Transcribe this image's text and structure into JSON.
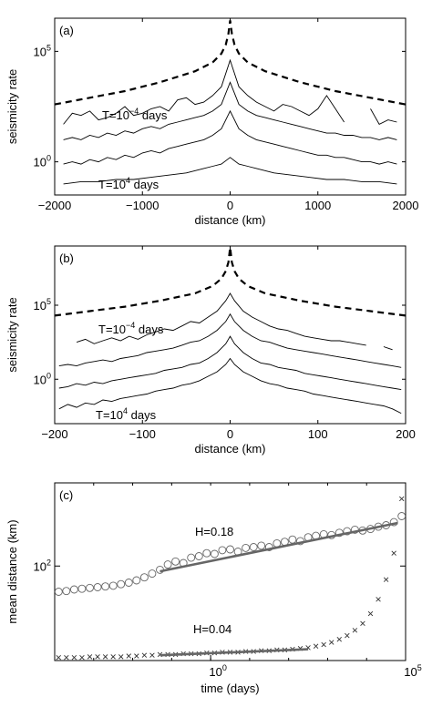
{
  "chart_data": [
    {
      "type": "line",
      "panel_label": "(a)",
      "xlabel": "distance (km)",
      "ylabel": "seismicity rate",
      "xlim": [
        -2000,
        2000
      ],
      "ylim_log10": [
        -1.5,
        6.5
      ],
      "yscale": "log",
      "x_ticks": [
        -2000,
        -1000,
        0,
        1000,
        2000
      ],
      "x_tick_labels": [
        "−2000",
        "−1000",
        "0",
        "1000",
        "2000"
      ],
      "y_ticks_log10": [
        0,
        5
      ],
      "y_tick_labels": [
        {
          "base": "10",
          "exp": "0"
        },
        {
          "base": "10",
          "exp": "5"
        }
      ],
      "annotations": [
        {
          "pre": "T=10",
          "exp": "−4",
          "post": " days"
        },
        {
          "pre": "T=10",
          "exp": "4",
          "post": " days"
        }
      ],
      "series": [
        {
          "style": "dashed",
          "x": [
            -2000,
            -1600,
            -1200,
            -800,
            -400,
            -200,
            -100,
            -50,
            -20,
            0,
            20,
            50,
            100,
            200,
            400,
            800,
            1200,
            1600,
            2000
          ],
          "y_log10": [
            2.6,
            2.9,
            3.2,
            3.6,
            4.1,
            4.5,
            4.9,
            5.3,
            5.8,
            6.4,
            5.8,
            5.3,
            4.9,
            4.5,
            4.1,
            3.6,
            3.2,
            2.9,
            2.6
          ]
        },
        {
          "style": "solid",
          "x": [
            -1900,
            -1800,
            -1700,
            -1600,
            -1500,
            -1400,
            -1300,
            -1200,
            -1100,
            -1000,
            -900,
            -800,
            -700,
            -600,
            -500,
            -400,
            -300,
            -200,
            -100,
            0,
            100,
            200,
            300,
            400,
            500,
            600,
            700,
            800,
            900,
            1000,
            1100,
            1200,
            1300,
            1400,
            1500,
            1600,
            1700,
            1800,
            1900
          ],
          "y_log10": [
            1.7,
            2.2,
            2.1,
            2.3,
            1.9,
            2.0,
            2.2,
            2.5,
            2.1,
            2.2,
            2.4,
            2.5,
            2.3,
            2.8,
            2.9,
            2.6,
            2.7,
            3.0,
            3.4,
            4.6,
            3.4,
            3.0,
            2.7,
            2.5,
            2.3,
            2.6,
            2.5,
            2.3,
            2.1,
            2.4,
            3.0,
            2.4,
            1.8,
            null,
            null,
            2.4,
            1.7,
            1.9,
            1.8
          ]
        },
        {
          "style": "solid",
          "x": [
            -1900,
            -1800,
            -1700,
            -1600,
            -1500,
            -1400,
            -1300,
            -1200,
            -1100,
            -1000,
            -900,
            -800,
            -700,
            -600,
            -500,
            -400,
            -300,
            -200,
            -100,
            0,
            100,
            200,
            300,
            400,
            500,
            600,
            700,
            800,
            900,
            1000,
            1100,
            1200,
            1300,
            1400,
            1500,
            1600,
            1700,
            1800,
            1900
          ],
          "y_log10": [
            1.0,
            1.1,
            1.0,
            1.2,
            1.1,
            1.3,
            1.2,
            1.4,
            1.3,
            1.5,
            1.6,
            1.5,
            1.7,
            1.8,
            1.9,
            2.0,
            2.1,
            2.3,
            2.6,
            3.6,
            2.6,
            2.3,
            2.1,
            2.0,
            1.9,
            1.8,
            1.7,
            1.6,
            1.5,
            1.4,
            1.3,
            1.3,
            1.2,
            1.2,
            1.1,
            1.1,
            1.0,
            1.1,
            1.0
          ]
        },
        {
          "style": "solid",
          "x": [
            -1900,
            -1800,
            -1700,
            -1600,
            -1500,
            -1400,
            -1300,
            -1200,
            -1100,
            -1000,
            -900,
            -800,
            -700,
            -600,
            -500,
            -400,
            -300,
            -200,
            -100,
            0,
            100,
            200,
            300,
            400,
            500,
            600,
            700,
            800,
            900,
            1000,
            1100,
            1200,
            1300,
            1400,
            1500,
            1600,
            1700,
            1800,
            1900
          ],
          "y_log10": [
            -0.1,
            0.0,
            -0.1,
            0.1,
            0.0,
            0.2,
            0.1,
            0.3,
            0.2,
            0.4,
            0.5,
            0.4,
            0.6,
            0.7,
            0.8,
            0.9,
            1.0,
            1.2,
            1.5,
            2.3,
            1.5,
            1.2,
            1.0,
            0.9,
            0.8,
            0.7,
            0.6,
            0.5,
            0.4,
            0.3,
            0.3,
            0.2,
            0.2,
            0.1,
            0.0,
            0.0,
            -0.1,
            0.0,
            -0.1
          ]
        },
        {
          "style": "solid",
          "x": [
            -1900,
            -1700,
            -1500,
            -1300,
            -1100,
            -900,
            -700,
            -500,
            -300,
            -200,
            -100,
            0,
            100,
            200,
            300,
            500,
            700,
            900,
            1100,
            1300,
            1500,
            1700,
            1900
          ],
          "y_log10": [
            -1.0,
            -0.9,
            -0.9,
            -0.8,
            -0.8,
            -0.7,
            -0.6,
            -0.5,
            -0.3,
            -0.2,
            -0.1,
            0.2,
            -0.1,
            -0.2,
            -0.3,
            -0.5,
            -0.6,
            -0.7,
            -0.8,
            -0.8,
            -0.9,
            -0.9,
            -1.0
          ]
        }
      ]
    },
    {
      "type": "line",
      "panel_label": "(b)",
      "xlabel": "distance (km)",
      "ylabel": "seismicity rate",
      "xlim": [
        -200,
        200
      ],
      "ylim_log10": [
        -3.0,
        9.0
      ],
      "yscale": "log",
      "x_ticks": [
        -200,
        -100,
        0,
        100,
        200
      ],
      "x_tick_labels": [
        "−200",
        "−100",
        "0",
        "100",
        "200"
      ],
      "y_ticks_log10": [
        0,
        5
      ],
      "y_tick_labels": [
        {
          "base": "10",
          "exp": "0"
        },
        {
          "base": "10",
          "exp": "5"
        }
      ],
      "annotations": [
        {
          "pre": "T=10",
          "exp": "−4",
          "post": " days"
        },
        {
          "pre": "T=10",
          "exp": "4",
          "post": " days"
        }
      ],
      "series": [
        {
          "style": "dashed",
          "x": [
            -200,
            -160,
            -120,
            -80,
            -40,
            -20,
            -10,
            -5,
            -2,
            0,
            2,
            5,
            10,
            20,
            40,
            80,
            120,
            160,
            200
          ],
          "y_log10": [
            4.3,
            4.6,
            4.9,
            5.3,
            5.8,
            6.3,
            6.8,
            7.3,
            7.9,
            8.9,
            7.9,
            7.3,
            6.8,
            6.3,
            5.8,
            5.3,
            4.9,
            4.6,
            4.3
          ]
        },
        {
          "style": "solid",
          "x": [
            -175,
            -165,
            -155,
            -145,
            -135,
            -125,
            -115,
            -105,
            -95,
            -85,
            -75,
            -65,
            -55,
            -45,
            -35,
            -25,
            -15,
            -5,
            0,
            5,
            15,
            25,
            35,
            45,
            55,
            65,
            75,
            85,
            95,
            105,
            115,
            125,
            135,
            145,
            155,
            165,
            175,
            185,
            195
          ],
          "y_log10": [
            2.5,
            2.7,
            2.4,
            2.6,
            2.8,
            2.6,
            2.9,
            2.7,
            3.0,
            3.2,
            3.4,
            3.3,
            3.6,
            3.9,
            3.8,
            4.2,
            4.6,
            5.3,
            5.8,
            5.3,
            4.6,
            4.2,
            3.9,
            3.6,
            3.4,
            3.3,
            3.1,
            2.9,
            2.8,
            2.7,
            2.6,
            2.6,
            2.5,
            2.4,
            2.3,
            null,
            2.2,
            2.0,
            null
          ]
        },
        {
          "style": "solid",
          "x": [
            -195,
            -185,
            -175,
            -165,
            -155,
            -145,
            -135,
            -125,
            -115,
            -105,
            -95,
            -85,
            -75,
            -65,
            -55,
            -45,
            -35,
            -25,
            -15,
            -5,
            0,
            5,
            15,
            25,
            35,
            45,
            55,
            65,
            75,
            85,
            95,
            105,
            115,
            125,
            135,
            145,
            155,
            165,
            175,
            185,
            195
          ],
          "y_log10": [
            0.9,
            1.0,
            0.9,
            1.1,
            1.2,
            1.3,
            1.2,
            1.4,
            1.5,
            1.6,
            1.8,
            1.9,
            2.0,
            2.1,
            2.3,
            2.5,
            2.6,
            2.9,
            3.3,
            3.9,
            4.4,
            3.9,
            3.3,
            2.9,
            2.6,
            2.5,
            2.3,
            2.1,
            2.0,
            1.9,
            1.8,
            1.7,
            1.6,
            1.5,
            1.4,
            1.3,
            1.2,
            1.1,
            1.0,
            0.9,
            0.8
          ]
        },
        {
          "style": "solid",
          "x": [
            -195,
            -185,
            -175,
            -165,
            -155,
            -145,
            -135,
            -125,
            -115,
            -105,
            -95,
            -85,
            -75,
            -65,
            -55,
            -45,
            -35,
            -25,
            -15,
            -5,
            0,
            5,
            15,
            25,
            35,
            45,
            55,
            65,
            75,
            85,
            95,
            105,
            115,
            125,
            135,
            145,
            155,
            165,
            175,
            185,
            195
          ],
          "y_log10": [
            -0.6,
            -0.5,
            -0.3,
            -0.4,
            -0.2,
            -0.3,
            -0.1,
            0.0,
            0.1,
            0.2,
            0.3,
            0.4,
            0.6,
            0.7,
            0.8,
            1.0,
            1.1,
            1.4,
            1.8,
            2.4,
            2.9,
            2.4,
            1.8,
            1.4,
            1.1,
            1.0,
            0.8,
            0.7,
            0.6,
            0.4,
            0.3,
            0.2,
            0.1,
            0.0,
            -0.1,
            -0.2,
            -0.3,
            -0.4,
            -0.5,
            -0.6,
            -0.7
          ]
        },
        {
          "style": "solid",
          "x": [
            -195,
            -185,
            -175,
            -165,
            -155,
            -145,
            -135,
            -125,
            -115,
            -105,
            -95,
            -85,
            -75,
            -65,
            -55,
            -45,
            -35,
            -25,
            -15,
            -5,
            0,
            5,
            15,
            25,
            35,
            45,
            55,
            65,
            75,
            85,
            95,
            105,
            115,
            125,
            135,
            145,
            155,
            165,
            175,
            185,
            195
          ],
          "y_log10": [
            -2.0,
            -1.7,
            -1.9,
            -1.6,
            -1.7,
            -1.4,
            -1.5,
            -1.3,
            -1.2,
            -1.1,
            -1.0,
            -0.8,
            -0.7,
            -0.6,
            -0.4,
            -0.3,
            -0.1,
            0.2,
            0.5,
            1.0,
            1.4,
            1.0,
            0.5,
            0.2,
            -0.1,
            -0.3,
            -0.4,
            -0.6,
            -0.7,
            -0.8,
            -1.0,
            -1.1,
            -1.2,
            -1.3,
            -1.4,
            -1.5,
            -1.6,
            -1.7,
            -1.8,
            -2.0,
            -2.3
          ]
        }
      ]
    },
    {
      "type": "scatter",
      "panel_label": "(c)",
      "xlabel": "time (days)",
      "ylabel": "mean distance (km)",
      "xscale": "log",
      "yscale": "log",
      "xlim_log10": [
        -4,
        5
      ],
      "ylim_log10": [
        0.75,
        3.1
      ],
      "x_ticks_log10": [
        0,
        5
      ],
      "x_tick_labels": [
        {
          "base": "10",
          "exp": "0"
        },
        {
          "base": "10",
          "exp": "5"
        }
      ],
      "y_ticks_log10": [
        2
      ],
      "y_tick_labels": [
        {
          "base": "10",
          "exp": "2"
        }
      ],
      "annotations": [
        "H=0.18",
        "H=0.04"
      ],
      "series": [
        {
          "marker": "circle",
          "x_log10": [
            -3.9,
            -3.7,
            -3.5,
            -3.3,
            -3.1,
            -2.9,
            -2.7,
            -2.5,
            -2.3,
            -2.1,
            -1.9,
            -1.7,
            -1.5,
            -1.3,
            -1.1,
            -0.9,
            -0.7,
            -0.5,
            -0.3,
            -0.1,
            0.1,
            0.3,
            0.5,
            0.7,
            0.9,
            1.1,
            1.3,
            1.5,
            1.7,
            1.9,
            2.1,
            2.3,
            2.5,
            2.7,
            2.9,
            3.1,
            3.3,
            3.5,
            3.7,
            3.9,
            4.1,
            4.3,
            4.5,
            4.7,
            4.9
          ],
          "y_log10": [
            1.66,
            1.67,
            1.69,
            1.7,
            1.71,
            1.72,
            1.73,
            1.74,
            1.76,
            1.78,
            1.81,
            1.85,
            1.9,
            1.95,
            2.02,
            2.06,
            2.04,
            2.11,
            2.13,
            2.17,
            2.16,
            2.21,
            2.22,
            2.19,
            2.24,
            2.25,
            2.27,
            2.25,
            2.3,
            2.32,
            2.35,
            2.33,
            2.38,
            2.4,
            2.42,
            2.41,
            2.44,
            2.46,
            2.48,
            2.47,
            2.49,
            2.52,
            2.54,
            2.58,
            2.66
          ]
        },
        {
          "marker": "cross",
          "x_log10": [
            -3.9,
            -3.7,
            -3.5,
            -3.3,
            -3.1,
            -2.9,
            -2.7,
            -2.5,
            -2.3,
            -2.1,
            -1.9,
            -1.7,
            -1.5,
            -1.3,
            -1.1,
            -0.9,
            -0.7,
            -0.5,
            -0.3,
            -0.1,
            0.1,
            0.3,
            0.5,
            0.7,
            0.9,
            1.1,
            1.3,
            1.5,
            1.7,
            1.9,
            2.1,
            2.3,
            2.5,
            2.7,
            2.9,
            3.1,
            3.3,
            3.5,
            3.7,
            3.9,
            4.1,
            4.3,
            4.5,
            4.7,
            4.9
          ],
          "y_log10": [
            0.79,
            0.79,
            0.79,
            0.79,
            0.8,
            0.8,
            0.8,
            0.8,
            0.8,
            0.81,
            0.81,
            0.82,
            0.82,
            0.83,
            0.83,
            0.83,
            0.84,
            0.84,
            0.84,
            0.85,
            0.85,
            0.86,
            0.86,
            0.86,
            0.87,
            0.87,
            0.88,
            0.88,
            0.89,
            0.89,
            0.9,
            0.91,
            0.92,
            0.94,
            0.96,
            0.99,
            1.03,
            1.08,
            1.15,
            1.24,
            1.37,
            1.56,
            1.82,
            2.17,
            2.89
          ]
        },
        {
          "name": "H=0.18",
          "style": "fit",
          "x_log10": [
            -1.3,
            4.8
          ],
          "y_log10": [
            1.93,
            2.57
          ]
        },
        {
          "name": "H=0.04",
          "style": "fit",
          "x_log10": [
            -1.3,
            2.5
          ],
          "y_log10": [
            0.82,
            0.9
          ]
        }
      ]
    }
  ]
}
